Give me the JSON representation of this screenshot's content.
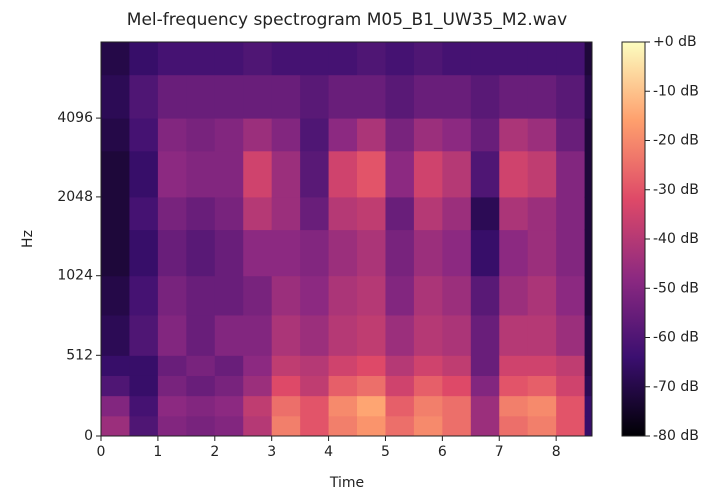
{
  "chart_data": {
    "type": "heatmap",
    "title": "Mel-frequency spectrogram M05_B1_UW35_M2.wav",
    "xlabel": "Time",
    "ylabel": "Hz",
    "xlim": [
      0,
      8.63
    ],
    "xticks": [
      0,
      1,
      2,
      3,
      4,
      5,
      6,
      7,
      8
    ],
    "ylim": [
      0,
      8000
    ],
    "yticks": [
      0,
      512,
      1024,
      2048,
      4096
    ],
    "yscale": "symlog",
    "linthresh": 1000,
    "base": 2,
    "linscale": 1,
    "clim": [
      -80,
      0
    ],
    "cticks": [
      {
        "value": 0,
        "label": "+0 dB"
      },
      {
        "value": -10,
        "label": "-10 dB"
      },
      {
        "value": -20,
        "label": "-20 dB"
      },
      {
        "value": -30,
        "label": "-30 dB"
      },
      {
        "value": -40,
        "label": "-40 dB"
      },
      {
        "value": -50,
        "label": "-50 dB"
      },
      {
        "value": -60,
        "label": "-60 dB"
      },
      {
        "value": -70,
        "label": "-70 dB"
      },
      {
        "value": -80,
        "label": "-80 dB"
      }
    ],
    "colormap": [
      "#000004",
      "#3b0f70",
      "#8c2981",
      "#de4968",
      "#fe9f6d",
      "#fcfdbf"
    ],
    "xbins": [
      0,
      0.5,
      1,
      1.5,
      2,
      2.5,
      3,
      3.5,
      4,
      4.5,
      5,
      5.5,
      6,
      6.5,
      7,
      7.5,
      8,
      8.5,
      8.63
    ],
    "ybins": [
      0,
      128,
      256,
      384,
      512,
      768,
      1024,
      1536,
      2048,
      3072,
      4096,
      6000,
      8000
    ],
    "z": [
      [
        -45,
        -50,
        -60,
        -65,
        -68,
        -70,
        -72,
        -72,
        -72,
        -70,
        -68,
        -70
      ],
      [
        -60,
        -62,
        -65,
        -65,
        -60,
        -62,
        -65,
        -62,
        -65,
        -62,
        -60,
        -65
      ],
      [
        -50,
        -48,
        -52,
        -55,
        -50,
        -52,
        -55,
        -52,
        -48,
        -50,
        -55,
        -62
      ],
      [
        -52,
        -50,
        -55,
        -52,
        -55,
        -55,
        -58,
        -55,
        -50,
        -52,
        -55,
        -62
      ],
      [
        -50,
        -48,
        -52,
        -55,
        -50,
        -55,
        -55,
        -52,
        -50,
        -50,
        -55,
        -62
      ],
      [
        -40,
        -38,
        -45,
        -48,
        -50,
        -52,
        -48,
        -40,
        -35,
        -45,
        -55,
        -60
      ],
      [
        -22,
        -25,
        -32,
        -38,
        -42,
        -45,
        -48,
        -45,
        -45,
        -50,
        -55,
        -62
      ],
      [
        -30,
        -30,
        -38,
        -40,
        -45,
        -48,
        -50,
        -55,
        -58,
        -60,
        -58,
        -62
      ],
      [
        -22,
        -20,
        -28,
        -35,
        -40,
        -42,
        -45,
        -40,
        -35,
        -48,
        -55,
        -62
      ],
      [
        -18,
        -15,
        -25,
        -32,
        -38,
        -40,
        -42,
        -38,
        -30,
        -42,
        -55,
        -60
      ],
      [
        -25,
        -28,
        -35,
        -40,
        -45,
        -50,
        -52,
        -55,
        -48,
        -52,
        -58,
        -62
      ],
      [
        -20,
        -22,
        -28,
        -35,
        -40,
        -42,
        -45,
        -40,
        -35,
        -45,
        -55,
        -60
      ],
      [
        -25,
        -25,
        -32,
        -38,
        -42,
        -45,
        -48,
        -45,
        -40,
        -48,
        -55,
        -62
      ],
      [
        -45,
        -45,
        -50,
        -55,
        -55,
        -58,
        -65,
        -68,
        -60,
        -55,
        -58,
        -62
      ],
      [
        -25,
        -22,
        -30,
        -35,
        -40,
        -45,
        -48,
        -42,
        -35,
        -42,
        -55,
        -62
      ],
      [
        -22,
        -20,
        -28,
        -35,
        -40,
        -42,
        -45,
        -45,
        -38,
        -45,
        -55,
        -62
      ],
      [
        -30,
        -30,
        -35,
        -38,
        -45,
        -48,
        -50,
        -50,
        -50,
        -55,
        -58,
        -62
      ],
      [
        -65,
        -65,
        -68,
        -70,
        -70,
        -72,
        -72,
        -72,
        -72,
        -72,
        -70,
        -72
      ]
    ]
  }
}
